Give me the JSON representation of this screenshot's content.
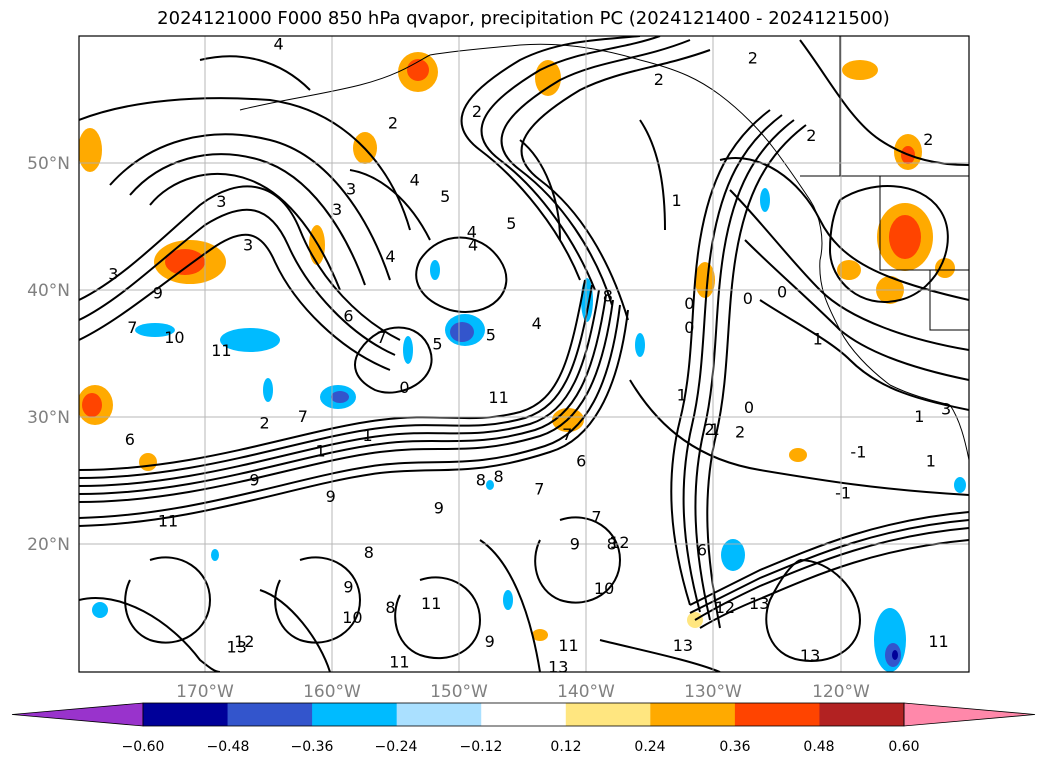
{
  "title": "2024121000 F000 850 hPa qvapor, precipitation PC (2024121400 - 2024121500)",
  "lat_labels": [
    "50°N",
    "40°N",
    "30°N",
    "20°N"
  ],
  "lon_labels": [
    "170°W",
    "160°W",
    "150°W",
    "140°W",
    "130°W",
    "120°W"
  ],
  "colorbar": {
    "tick_labels": [
      "−0.60",
      "−0.48",
      "−0.36",
      "−0.24",
      "−0.12",
      "0.12",
      "0.24",
      "0.36",
      "0.48",
      "0.60"
    ],
    "colors": [
      "#9933cc",
      "#000099",
      "#3355cc",
      "#00bbff",
      "#aae0ff",
      "#ffffff",
      "#ffe680",
      "#ffaa00",
      "#ff4400",
      "#b22222",
      "#ff88aa"
    ]
  },
  "contour_labels": [
    {
      "text": "4",
      "lon": -164.3,
      "lat": 59.3
    },
    {
      "text": "2",
      "lon": -155.3,
      "lat": 53.1
    },
    {
      "text": "2",
      "lon": -148.7,
      "lat": 54.0
    },
    {
      "text": "2",
      "lon": -134.4,
      "lat": 56.5
    },
    {
      "text": "2",
      "lon": -127.0,
      "lat": 58.2
    },
    {
      "text": "2",
      "lon": -122.4,
      "lat": 52.1
    },
    {
      "text": "2",
      "lon": -113.2,
      "lat": 51.8
    },
    {
      "text": "3",
      "lon": -158.6,
      "lat": 47.9
    },
    {
      "text": "3",
      "lon": -159.7,
      "lat": 46.3
    },
    {
      "text": "3",
      "lon": -168.8,
      "lat": 46.9
    },
    {
      "text": "3",
      "lon": -166.7,
      "lat": 43.5
    },
    {
      "text": "3",
      "lon": -177.3,
      "lat": 41.2
    },
    {
      "text": "4",
      "lon": -153.6,
      "lat": 48.6
    },
    {
      "text": "4",
      "lon": -149.1,
      "lat": 44.5
    },
    {
      "text": "4",
      "lon": -155.5,
      "lat": 42.6
    },
    {
      "text": "4",
      "lon": -149.0,
      "lat": 43.5
    },
    {
      "text": "4",
      "lon": -144.0,
      "lat": 37.3
    },
    {
      "text": "5",
      "lon": -151.2,
      "lat": 47.3
    },
    {
      "text": "5",
      "lon": -146.0,
      "lat": 45.2
    },
    {
      "text": "5",
      "lon": -151.8,
      "lat": 35.7
    },
    {
      "text": "5",
      "lon": -147.6,
      "lat": 36.4
    },
    {
      "text": "6",
      "lon": -158.8,
      "lat": 37.9
    },
    {
      "text": "6",
      "lon": -176.0,
      "lat": 28.2
    },
    {
      "text": "6",
      "lon": -140.5,
      "lat": 26.5
    },
    {
      "text": "6",
      "lon": -131.0,
      "lat": 19.5
    },
    {
      "text": "7",
      "lon": -175.8,
      "lat": 37.0
    },
    {
      "text": "7",
      "lon": -162.4,
      "lat": 30.0
    },
    {
      "text": "7",
      "lon": -156.2,
      "lat": 36.2
    },
    {
      "text": "7",
      "lon": -141.6,
      "lat": 28.6
    },
    {
      "text": "7",
      "lon": -143.8,
      "lat": 24.3
    },
    {
      "text": "7",
      "lon": -139.3,
      "lat": 22.1
    },
    {
      "text": "8",
      "lon": -138.4,
      "lat": 39.5
    },
    {
      "text": "8",
      "lon": -147.0,
      "lat": 25.3
    },
    {
      "text": "8",
      "lon": -148.4,
      "lat": 25.0
    },
    {
      "text": "8",
      "lon": -157.2,
      "lat": 19.3
    },
    {
      "text": "8",
      "lon": -138.1,
      "lat": 20.0
    },
    {
      "text": "8",
      "lon": -155.5,
      "lat": 15.0
    },
    {
      "text": "9",
      "lon": -173.8,
      "lat": 39.7
    },
    {
      "text": "9",
      "lon": -166.2,
      "lat": 25.0
    },
    {
      "text": "9",
      "lon": -160.2,
      "lat": 23.7
    },
    {
      "text": "9",
      "lon": -158.8,
      "lat": 16.6
    },
    {
      "text": "9",
      "lon": -151.7,
      "lat": 22.8
    },
    {
      "text": "9",
      "lon": -141.0,
      "lat": 20.0
    },
    {
      "text": "9",
      "lon": -147.7,
      "lat": 12.3
    },
    {
      "text": "10",
      "lon": -172.5,
      "lat": 36.2
    },
    {
      "text": "10",
      "lon": -158.5,
      "lat": 14.2
    },
    {
      "text": "10",
      "lon": -138.7,
      "lat": 16.5
    },
    {
      "text": "11",
      "lon": -168.8,
      "lat": 35.2
    },
    {
      "text": "11",
      "lon": -173.0,
      "lat": 21.8
    },
    {
      "text": "11",
      "lon": -147.0,
      "lat": 31.5
    },
    {
      "text": "11",
      "lon": -152.3,
      "lat": 15.3
    },
    {
      "text": "11",
      "lon": -141.5,
      "lat": 12.0
    },
    {
      "text": "11",
      "lon": -154.8,
      "lat": 10.7
    },
    {
      "text": "11",
      "lon": -112.4,
      "lat": 12.3
    },
    {
      "text": "12",
      "lon": -167.0,
      "lat": 12.3
    },
    {
      "text": "12",
      "lon": -137.5,
      "lat": 20.1
    },
    {
      "text": "12",
      "lon": -129.2,
      "lat": 15.0
    },
    {
      "text": "13",
      "lon": -167.6,
      "lat": 11.9
    },
    {
      "text": "13",
      "lon": -126.5,
      "lat": 15.3
    },
    {
      "text": "13",
      "lon": -132.5,
      "lat": 12.0
    },
    {
      "text": "13",
      "lon": -122.5,
      "lat": 11.2
    },
    {
      "text": "13",
      "lon": -142.3,
      "lat": 10.3
    },
    {
      "text": "2",
      "lon": -165.4,
      "lat": 29.5
    },
    {
      "text": "2",
      "lon": -130.4,
      "lat": 29.0
    },
    {
      "text": "2",
      "lon": -128.0,
      "lat": 28.8
    },
    {
      "text": "1",
      "lon": -161.0,
      "lat": 27.3
    },
    {
      "text": "1",
      "lon": -157.3,
      "lat": 28.5
    },
    {
      "text": "1",
      "lon": -132.6,
      "lat": 31.7
    },
    {
      "text": "1",
      "lon": -130.0,
      "lat": 29.0
    },
    {
      "text": "1",
      "lon": -133.0,
      "lat": 47.0
    },
    {
      "text": "1",
      "lon": -121.9,
      "lat": 36.1
    },
    {
      "text": "-1",
      "lon": -118.7,
      "lat": 27.2
    },
    {
      "text": "-1",
      "lon": -119.9,
      "lat": 24.0
    },
    {
      "text": "1",
      "lon": -113.0,
      "lat": 26.5
    },
    {
      "text": "0",
      "lon": -132.0,
      "lat": 38.9
    },
    {
      "text": "0",
      "lon": -132.0,
      "lat": 37.0
    },
    {
      "text": "0",
      "lon": -127.4,
      "lat": 39.3
    },
    {
      "text": "0",
      "lon": -124.7,
      "lat": 39.8
    },
    {
      "text": "0",
      "lon": -127.3,
      "lat": 30.7
    },
    {
      "text": "0",
      "lon": -154.4,
      "lat": 32.3
    },
    {
      "text": "1",
      "lon": -113.9,
      "lat": 30.0
    },
    {
      "text": "3",
      "lon": -111.8,
      "lat": 30.6
    }
  ]
}
